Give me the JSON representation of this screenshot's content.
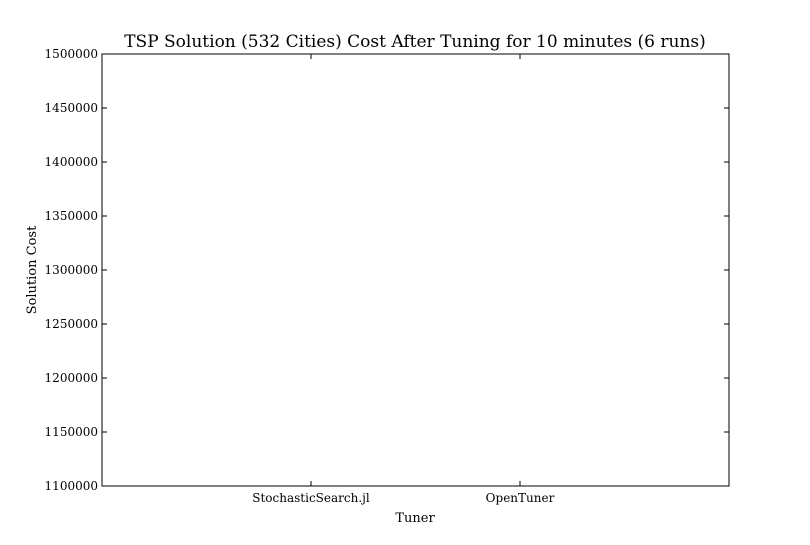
{
  "chart_data": {
    "type": "scatter",
    "title": "TSP Solution (532 Cities) Cost After Tuning for 10 minutes (6 runs)",
    "xlabel": "Tuner",
    "ylabel": "Solution Cost",
    "categories": [
      "StochasticSearch.jl",
      "OpenTuner"
    ],
    "series": [],
    "ylim": [
      1100000,
      1500000
    ],
    "yticks": [
      "1100000",
      "1150000",
      "1200000",
      "1250000",
      "1300000",
      "1350000",
      "1400000",
      "1450000",
      "1500000"
    ],
    "grid": false,
    "legend": "none"
  }
}
